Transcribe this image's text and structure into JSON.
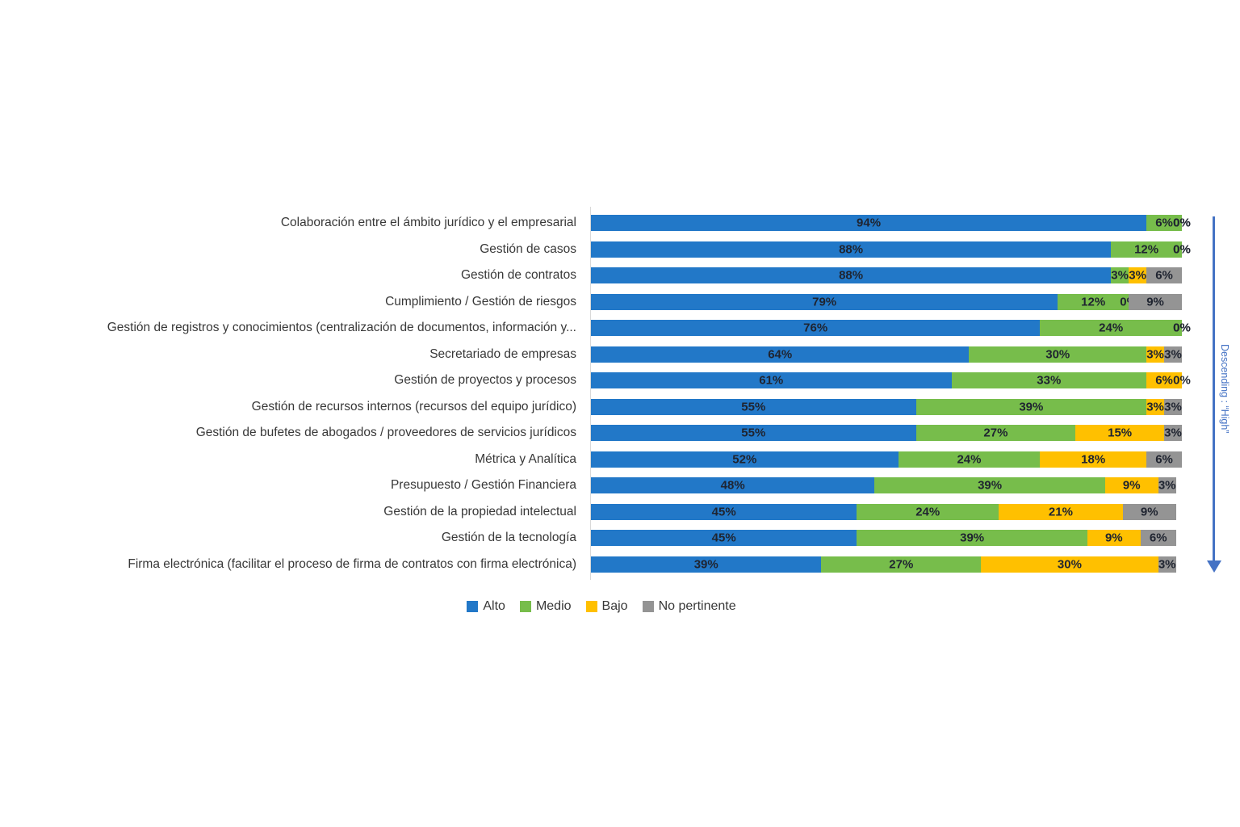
{
  "chart_data": {
    "type": "bar",
    "variant": "horizontal-stacked-100",
    "title": "",
    "unit": "%",
    "xlim": [
      0,
      100
    ],
    "grid": false,
    "legend_position": "bottom",
    "categories": [
      "Colaboración entre el ámbito jurídico y el empresarial",
      "Gestión de casos",
      "Gestión de contratos",
      "Cumplimiento / Gestión de riesgos",
      "Gestión de registros y conocimientos (centralización de documentos, información y...",
      "Secretariado de empresas",
      "Gestión de proyectos y procesos",
      "Gestión de recursos internos (recursos del equipo jurídico)",
      "Gestión de bufetes de abogados / proveedores de servicios jurídicos",
      "Métrica y Analítica",
      "Presupuesto / Gestión Financiera",
      "Gestión de la propiedad intelectual",
      "Gestión de la tecnología",
      "Firma electrónica (facilitar el proceso de firma de contratos con firma electrónica)"
    ],
    "series": [
      {
        "name": "Alto",
        "color": "#2278C8",
        "values": [
          94,
          88,
          88,
          79,
          76,
          64,
          61,
          55,
          55,
          52,
          48,
          45,
          45,
          39
        ]
      },
      {
        "name": "Medio",
        "color": "#77BD4B",
        "values": [
          6,
          12,
          3,
          12,
          24,
          30,
          33,
          39,
          27,
          24,
          39,
          24,
          39,
          27
        ]
      },
      {
        "name": "Bajo",
        "color": "#FFC000",
        "values": [
          0,
          0,
          3,
          0,
          0,
          3,
          6,
          3,
          15,
          18,
          9,
          21,
          9,
          30
        ]
      },
      {
        "name": "No pertinente",
        "color": "#949494",
        "values": [
          0,
          0,
          6,
          9,
          0,
          3,
          0,
          3,
          3,
          6,
          3,
          9,
          6,
          3
        ]
      }
    ],
    "annotation": "Descending : “High”"
  },
  "legend": {
    "items": [
      {
        "label": "Alto",
        "color": "#2278C8"
      },
      {
        "label": "Medio",
        "color": "#77BD4B"
      },
      {
        "label": "Bajo",
        "color": "#FFC000"
      },
      {
        "label": "No pertinente",
        "color": "#949494"
      }
    ]
  },
  "annotation": {
    "text": "Descending : “High”",
    "color": "#4472C4"
  }
}
